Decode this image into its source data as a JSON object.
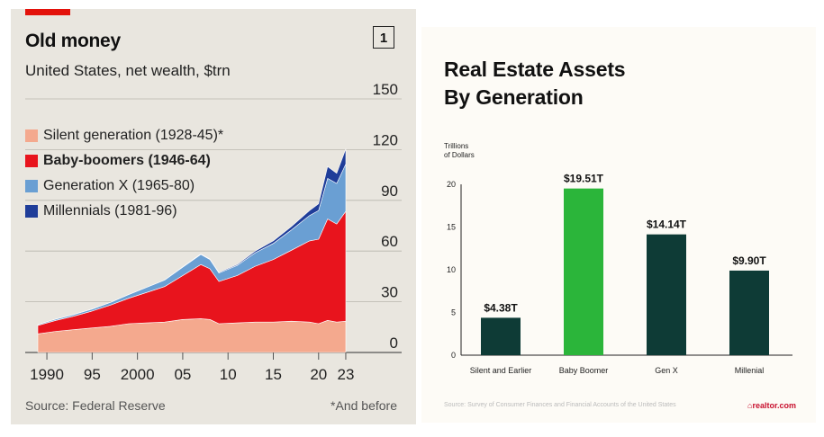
{
  "left": {
    "title": "Old money",
    "subtitle": "United States, net wealth, $trn",
    "number": "1",
    "source": "Source: Federal Reserve",
    "footnote": "*And before",
    "legend": [
      {
        "label": "Silent generation (1928-45)*",
        "color": "#f4a98e",
        "bold": false
      },
      {
        "label": "Baby-boomers (1946-64)",
        "color": "#e8141d",
        "bold": true
      },
      {
        "label": "Generation X (1965-80)",
        "color": "#6a9fd3",
        "bold": false
      },
      {
        "label": "Millennials (1981-96)",
        "color": "#1f3d99",
        "bold": false
      }
    ]
  },
  "right": {
    "title_line1": "Real Estate Assets",
    "title_line2": "By Generation",
    "unit_line1": "Trillions",
    "unit_line2": "of Dollars",
    "source": "Source: Survey of Consumer Finances and Financial Accounts of the United States",
    "logo": "realtor.com"
  },
  "chart_data": [
    {
      "type": "area",
      "title": "Old money",
      "subtitle": "United States, net wealth, $trn",
      "ylim": [
        0,
        150
      ],
      "yticks": [
        0,
        30,
        60,
        90,
        120,
        150
      ],
      "xticks": [
        1990,
        1995,
        2000,
        2005,
        2010,
        2015,
        2020,
        2023
      ],
      "xtick_labels": [
        "1990",
        "95",
        "2000",
        "05",
        "10",
        "15",
        "20",
        "23"
      ],
      "x": [
        1989,
        1991,
        1993,
        1995,
        1997,
        1999,
        2001,
        2003,
        2005,
        2007,
        2008,
        2009,
        2011,
        2013,
        2015,
        2017,
        2019,
        2020,
        2021,
        2022,
        2023
      ],
      "series": [
        {
          "name": "Silent generation (1928-45)*",
          "color": "#f4a98e",
          "values": [
            11,
            12.5,
            13.5,
            14.5,
            15.5,
            17,
            17.5,
            18,
            19.5,
            20,
            19.5,
            17,
            17.5,
            18,
            18,
            18.5,
            18,
            17,
            19,
            18,
            18.5
          ]
        },
        {
          "name": "Baby-boomers (1946-64)",
          "color": "#e8141d",
          "values": [
            5,
            6.5,
            8,
            10,
            12.5,
            15,
            18,
            21,
            26,
            32,
            30,
            25,
            28,
            33,
            37,
            42,
            48,
            50,
            60,
            58,
            65
          ]
        },
        {
          "name": "Generation X (1965-80)",
          "color": "#6a9fd3",
          "values": [
            0.5,
            0.8,
            1,
            1.2,
            1.6,
            2.2,
            3,
            3.8,
            5,
            6,
            5.5,
            5,
            6,
            8,
            9.5,
            12,
            15,
            17,
            24,
            24,
            28
          ]
        },
        {
          "name": "Millennials (1981-96)",
          "color": "#1f3d99",
          "values": [
            0,
            0,
            0,
            0,
            0,
            0,
            0,
            0,
            0.2,
            0.3,
            0.3,
            0.4,
            0.6,
            1,
            1.5,
            2,
            3,
            4,
            7,
            6,
            9
          ]
        }
      ]
    },
    {
      "type": "bar",
      "title": "Real Estate Assets By Generation",
      "ylabel": "Trillions of Dollars",
      "ylim": [
        0,
        20
      ],
      "yticks": [
        0,
        5,
        10,
        15,
        20
      ],
      "categories": [
        "Silent and Earlier",
        "Baby Boomer",
        "Gen X",
        "Millenial"
      ],
      "values": [
        4.38,
        19.51,
        14.14,
        9.9
      ],
      "labels": [
        "$4.38T",
        "$19.51T",
        "$14.14T",
        "$9.90T"
      ],
      "colors": [
        "#0e3b36",
        "#2bb53a",
        "#0e3b36",
        "#0e3b36"
      ]
    }
  ]
}
